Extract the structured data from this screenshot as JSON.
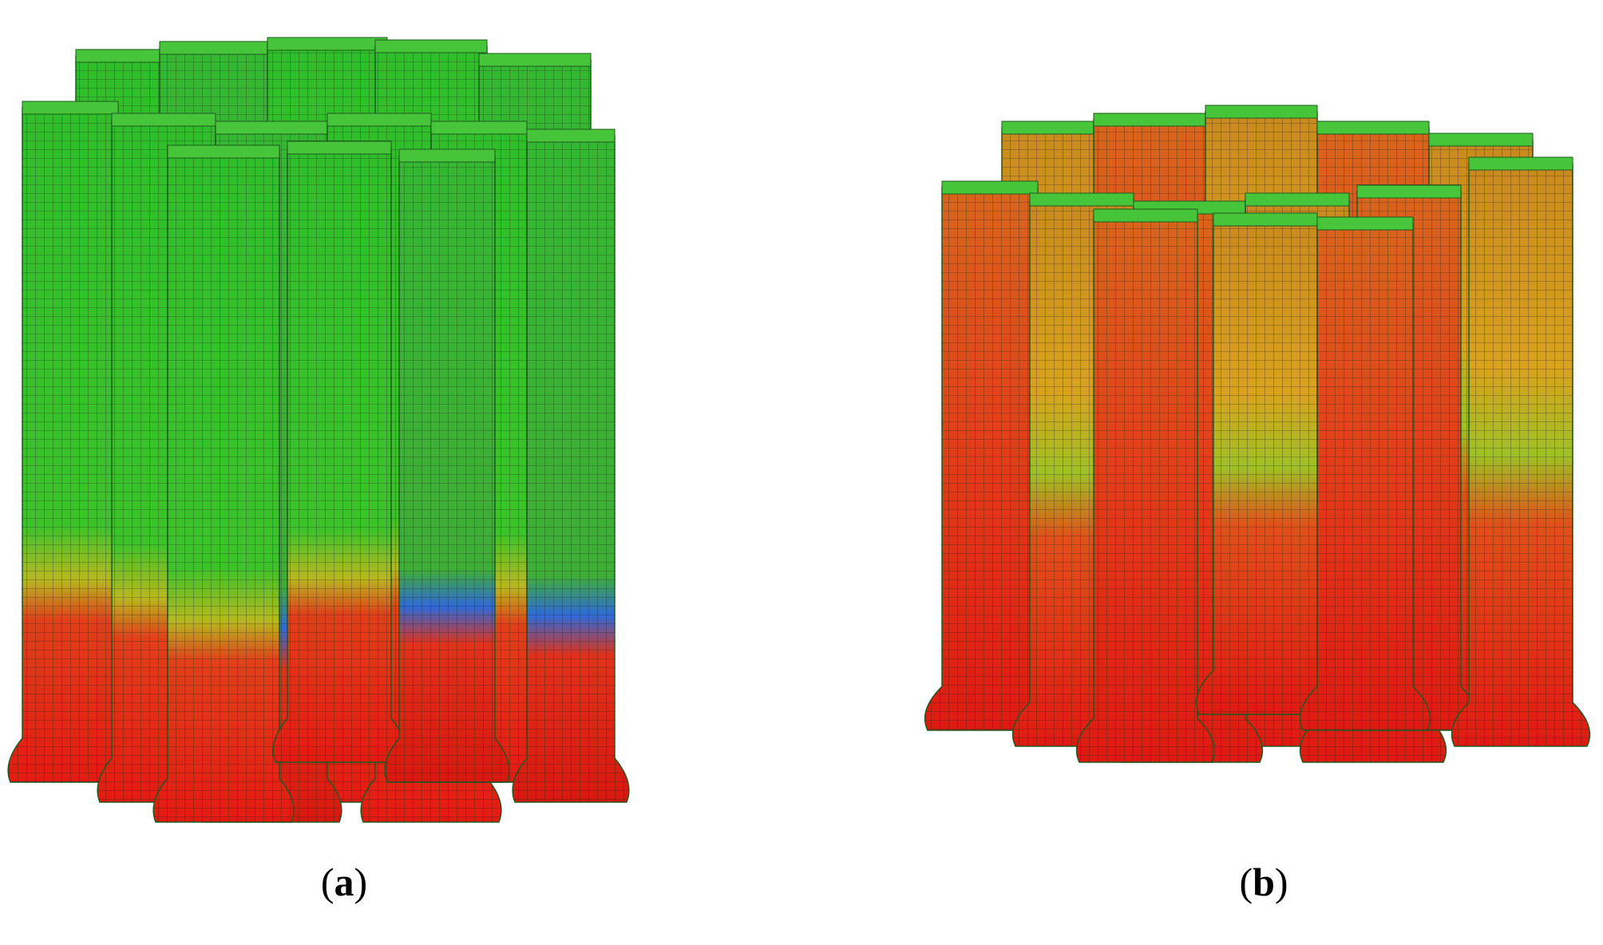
{
  "panels": [
    {
      "label": {
        "open": "(",
        "letter": "a",
        "close": ")"
      }
    },
    {
      "label": {
        "open": "(",
        "letter": "b",
        "close": ")"
      }
    }
  ]
}
